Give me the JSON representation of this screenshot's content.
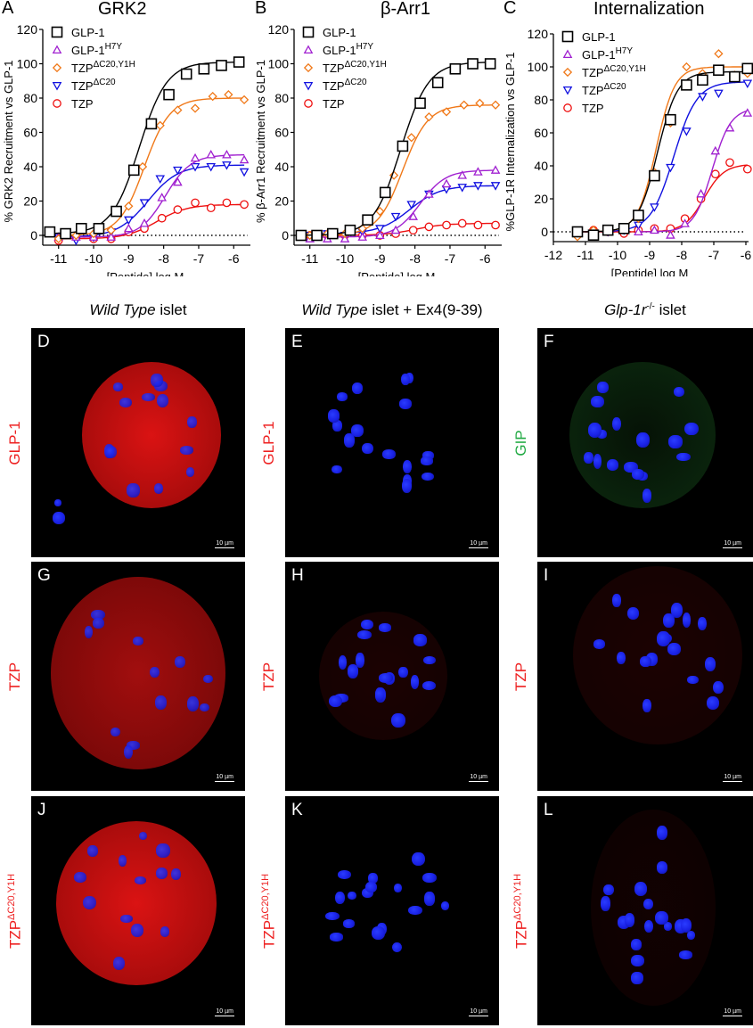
{
  "figure": {
    "chart_panels": [
      {
        "letter": "A",
        "title": "GRK2"
      },
      {
        "letter": "B",
        "title": "β-Arr1"
      },
      {
        "letter": "C",
        "title": "Internalization"
      }
    ],
    "column_titles": [
      {
        "italic": "Wild Type",
        "rest": " islet"
      },
      {
        "italic": "Wild Type",
        "rest": " islet + Ex4(9-39)"
      },
      {
        "italic": "Glp-1r",
        "sup": "-/-",
        "rest": " islet"
      }
    ],
    "row_labels": [
      {
        "text": "GLP-1",
        "color": "#ee2222",
        "alt_text": "GIP",
        "alt_color": "#22aa44"
      },
      {
        "text": "TZP",
        "color": "#ee2222"
      },
      {
        "text": "TZP",
        "sup": "ΔC20,Y1H",
        "color": "#ee2222"
      }
    ],
    "image_panels": [
      {
        "letter": "D",
        "row": 0,
        "col": 0,
        "stain": "GLP-1",
        "scale_bar": "10 µm"
      },
      {
        "letter": "E",
        "row": 0,
        "col": 1,
        "stain": "GLP-1",
        "scale_bar": "10 µm"
      },
      {
        "letter": "F",
        "row": 0,
        "col": 2,
        "stain": "GIP",
        "scale_bar": "10 µm"
      },
      {
        "letter": "G",
        "row": 1,
        "col": 0,
        "stain": "TZP",
        "scale_bar": "10 µm"
      },
      {
        "letter": "H",
        "row": 1,
        "col": 1,
        "stain": "TZP",
        "scale_bar": "10 µm"
      },
      {
        "letter": "I",
        "row": 1,
        "col": 2,
        "stain": "TZP",
        "scale_bar": "10 µm"
      },
      {
        "letter": "J",
        "row": 2,
        "col": 0,
        "stain": "TZPΔC20,Y1H",
        "scale_bar": "10 µm"
      },
      {
        "letter": "K",
        "row": 2,
        "col": 1,
        "stain": "TZPΔC20,Y1H",
        "scale_bar": "10 µm"
      },
      {
        "letter": "L",
        "row": 2,
        "col": 2,
        "stain": "TZPΔC20,Y1H",
        "scale_bar": "10 µm"
      }
    ]
  },
  "legend": [
    {
      "name": "GLP-1",
      "sup": "",
      "marker": "square",
      "color": "#000000"
    },
    {
      "name": "GLP-1",
      "sup": "H7Y",
      "marker": "triangle-up",
      "color": "#a020d0"
    },
    {
      "name": "TZP",
      "sup": "ΔC20,Y1H",
      "marker": "diamond",
      "color": "#f07818"
    },
    {
      "name": "TZP",
      "sup": "ΔC20",
      "marker": "triangle-down",
      "color": "#1010e0"
    },
    {
      "name": "TZP",
      "sup": "",
      "marker": "circle",
      "color": "#ee1010"
    }
  ],
  "chart_data": [
    {
      "type": "line",
      "title": "GRK2",
      "xlabel": "[Peptide] log M",
      "ylabel": "% GRK2 Recruitment vs GLP-1",
      "xlim": [
        -11.4,
        -5.6
      ],
      "ylim": [
        -5,
        120
      ],
      "xticks": [
        -11,
        -10,
        -9,
        -8,
        -7,
        -6
      ],
      "yticks": [
        0,
        20,
        40,
        60,
        80,
        100,
        120
      ],
      "reference_line_y": 0,
      "legend_position": "upper left",
      "series": [
        {
          "name": "GLP-1",
          "x": [
            -11.25,
            -10.8,
            -10.35,
            -9.85,
            -9.35,
            -8.85,
            -8.35,
            -7.85,
            -7.35,
            -6.85,
            -6.35,
            -5.85
          ],
          "y": [
            2,
            1,
            4,
            4,
            14,
            38,
            65,
            82,
            94,
            97,
            99,
            101
          ],
          "fit": {
            "bottom": 1,
            "top": 101,
            "logEC50": -8.7,
            "hill": 1.1
          }
        },
        {
          "name": "GLP-1 H7Y",
          "x": [
            -11.0,
            -10.5,
            -10.0,
            -9.5,
            -9.0,
            -8.55,
            -8.05,
            -7.6,
            -7.1,
            -6.65,
            -6.2,
            -5.7
          ],
          "y": [
            -1,
            -1,
            -1,
            -1,
            4,
            7,
            22,
            31,
            45,
            47,
            47,
            44
          ],
          "fit": {
            "bottom": -1,
            "top": 47,
            "logEC50": -7.95,
            "hill": 1.2
          }
        },
        {
          "name": "TZP ΔC20,Y1H",
          "x": [
            -11.0,
            -10.5,
            -10.0,
            -9.5,
            -9.0,
            -8.6,
            -8.1,
            -7.6,
            -7.1,
            -6.6,
            -6.15,
            -5.7
          ],
          "y": [
            -2,
            0,
            1,
            3,
            17,
            40,
            64,
            73,
            74,
            81,
            82,
            79
          ],
          "fit": {
            "bottom": 0,
            "top": 80,
            "logEC50": -8.55,
            "hill": 1.2
          }
        },
        {
          "name": "TZP ΔC20",
          "x": [
            -11.0,
            -10.5,
            -10.0,
            -9.5,
            -9.0,
            -8.55,
            -8.1,
            -7.6,
            -7.1,
            -6.65,
            -6.2,
            -5.7
          ],
          "y": [
            -1,
            -3,
            -1,
            2,
            9,
            19,
            33,
            38,
            40,
            40,
            41,
            37
          ],
          "fit": {
            "bottom": -1,
            "top": 41,
            "logEC50": -8.45,
            "hill": 1.0
          }
        },
        {
          "name": "TZP",
          "x": [
            -11.0,
            -10.5,
            -10.0,
            -9.5,
            -9.0,
            -8.55,
            -8.05,
            -7.6,
            -7.1,
            -6.65,
            -6.2,
            -5.7
          ],
          "y": [
            -3,
            -1,
            -2,
            -2,
            2,
            4,
            10,
            15,
            19,
            16,
            19,
            18
          ],
          "fit": {
            "bottom": -2,
            "top": 18,
            "logEC50": -8.2,
            "hill": 1.0
          }
        }
      ]
    },
    {
      "type": "line",
      "title": "β-Arr1",
      "xlabel": "[Peptide] log M",
      "ylabel": "% β-Arr1 Recruitment vs GLP-1",
      "xlim": [
        -11.4,
        -5.6
      ],
      "ylim": [
        -5,
        120
      ],
      "xticks": [
        -11,
        -10,
        -9,
        -8,
        -7,
        -6
      ],
      "yticks": [
        0,
        20,
        40,
        60,
        80,
        100,
        120
      ],
      "reference_line_y": 0,
      "legend_position": "upper left",
      "series": [
        {
          "name": "GLP-1",
          "x": [
            -11.25,
            -10.8,
            -10.35,
            -9.85,
            -9.35,
            -8.85,
            -8.35,
            -7.85,
            -7.35,
            -6.85,
            -6.35,
            -5.85
          ],
          "y": [
            0,
            0,
            1,
            3,
            9,
            25,
            52,
            77,
            89,
            97,
            100,
            100
          ],
          "fit": {
            "bottom": 0,
            "top": 101,
            "logEC50": -8.4,
            "hill": 1.1
          }
        },
        {
          "name": "GLP-1 H7Y",
          "x": [
            -11.0,
            -10.5,
            -10.0,
            -9.5,
            -9.0,
            -8.55,
            -8.05,
            -7.6,
            -7.1,
            -6.65,
            -6.2,
            -5.7
          ],
          "y": [
            -2,
            -2,
            -2,
            -1,
            0,
            3,
            11,
            24,
            30,
            35,
            37,
            38
          ],
          "fit": {
            "bottom": -1,
            "top": 38,
            "logEC50": -7.85,
            "hill": 1.2
          }
        },
        {
          "name": "TZP ΔC20,Y1H",
          "x": [
            -11.0,
            -10.5,
            -10.0,
            -9.5,
            -9.0,
            -8.6,
            -8.1,
            -7.6,
            -7.1,
            -6.6,
            -6.15,
            -5.7
          ],
          "y": [
            0,
            1,
            1,
            4,
            14,
            35,
            57,
            69,
            72,
            76,
            77,
            76
          ],
          "fit": {
            "bottom": 0,
            "top": 76,
            "logEC50": -8.35,
            "hill": 1.2
          }
        },
        {
          "name": "TZP ΔC20",
          "x": [
            -11.0,
            -10.5,
            -10.0,
            -9.5,
            -9.0,
            -8.55,
            -8.1,
            -7.6,
            -7.1,
            -6.65,
            -6.2,
            -5.7
          ],
          "y": [
            0,
            1,
            0,
            2,
            4,
            11,
            18,
            24,
            27,
            28,
            29,
            29
          ],
          "fit": {
            "bottom": 1,
            "top": 29,
            "logEC50": -8.15,
            "hill": 1.0
          }
        },
        {
          "name": "TZP",
          "x": [
            -11.0,
            -10.5,
            -10.0,
            -9.5,
            -9.0,
            -8.55,
            -8.05,
            -7.6,
            -7.1,
            -6.65,
            -6.2,
            -5.7
          ],
          "y": [
            0,
            0,
            0,
            0,
            0,
            1,
            3,
            5,
            6,
            7,
            6,
            6
          ],
          "fit": {
            "bottom": 0,
            "top": 7,
            "logEC50": -8.0,
            "hill": 1.0
          }
        }
      ]
    },
    {
      "type": "line",
      "title": "Internalization",
      "xlabel": "[Peptide] log M",
      "ylabel": "%GLP-1R Internalization vs GLP-1",
      "xlim": [
        -12,
        -6
      ],
      "ylim": [
        -5,
        120
      ],
      "xticks": [
        -12,
        -11,
        -10,
        -9,
        -8,
        -7,
        -6
      ],
      "yticks": [
        0,
        20,
        40,
        60,
        80,
        100,
        120
      ],
      "reference_line_y": 0,
      "legend_position": "upper left",
      "series": [
        {
          "name": "GLP-1",
          "x": [
            -11.25,
            -10.75,
            -10.3,
            -9.8,
            -9.35,
            -8.85,
            -8.35,
            -7.85,
            -7.35,
            -6.85,
            -6.35,
            -5.95
          ],
          "y": [
            0,
            -2,
            1,
            2,
            10,
            34,
            68,
            89,
            92,
            98,
            94,
            99
          ],
          "fit": {
            "bottom": 0,
            "top": 97,
            "logEC50": -8.75,
            "hill": 1.4
          }
        },
        {
          "name": "GLP-1 H7Y",
          "x": [
            -9.35,
            -8.85,
            -8.35,
            -7.9,
            -7.4,
            -6.95,
            -6.5,
            -5.95
          ],
          "y": [
            0,
            1,
            -2,
            5,
            23,
            49,
            63,
            72
          ],
          "fit": {
            "bottom": 0,
            "top": 75,
            "logEC50": -7.05,
            "hill": 1.5
          }
        },
        {
          "name": "TZP ΔC20,Y1H",
          "x": [
            -11.25,
            -10.75,
            -10.3,
            -9.8,
            -9.35,
            -8.85,
            -8.35,
            -7.85,
            -7.35,
            -6.85,
            -6.35,
            -5.95
          ],
          "y": [
            -3,
            1,
            1,
            2,
            8,
            36,
            66,
            100,
            96,
            108,
            95,
            96
          ],
          "fit": {
            "bottom": 0,
            "top": 100,
            "logEC50": -8.8,
            "hill": 1.5
          }
        },
        {
          "name": "TZP ΔC20",
          "x": [
            -11.25,
            -10.75,
            -10.3,
            -9.8,
            -9.35,
            -8.85,
            -8.35,
            -7.85,
            -7.35,
            -6.85,
            -6.35,
            -5.95
          ],
          "y": [
            0,
            -1,
            0,
            1,
            4,
            15,
            39,
            61,
            82,
            84,
            93,
            90
          ],
          "fit": {
            "bottom": 0,
            "top": 91,
            "logEC50": -8.25,
            "hill": 1.2
          }
        },
        {
          "name": "TZP",
          "x": [
            -11.25,
            -10.75,
            -10.3,
            -9.8,
            -9.35,
            -8.85,
            -8.35,
            -7.9,
            -7.4,
            -6.95,
            -6.5,
            -5.95
          ],
          "y": [
            0,
            1,
            0,
            -1,
            1,
            2,
            2,
            8,
            20,
            35,
            42,
            38
          ],
          "fit": {
            "bottom": 0,
            "top": 41,
            "logEC50": -7.3,
            "hill": 1.4
          }
        }
      ]
    }
  ]
}
